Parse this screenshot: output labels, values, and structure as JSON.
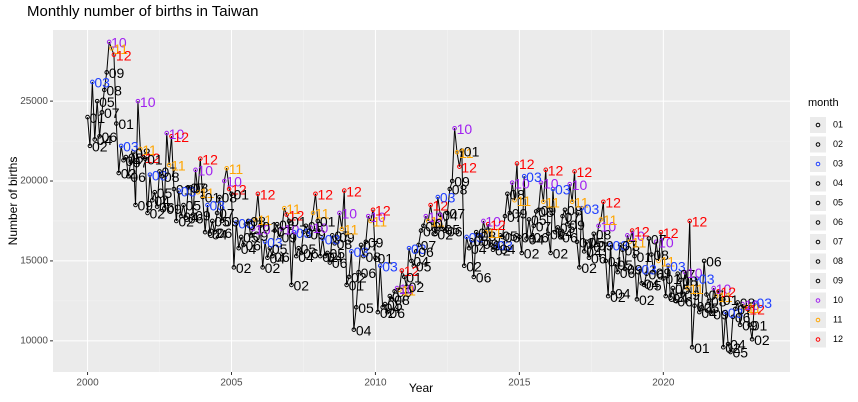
{
  "chart_data": {
    "type": "line",
    "title": "Monthly number of births in Taiwan",
    "x_label": "Year",
    "y_label": "Number of births",
    "legend_title": "month",
    "x": [
      2000,
      2001,
      2002,
      2003,
      2004,
      2005,
      2006,
      2007,
      2008,
      2009,
      2010,
      2011,
      2012,
      2013,
      2014,
      2015,
      2016,
      2017,
      2018,
      2019,
      2020,
      2021,
      2022,
      2023
    ],
    "xlim": [
      1998.8,
      2024.4
    ],
    "xticks": [
      2000,
      2005,
      2010,
      2015,
      2020
    ],
    "ylim": [
      8050,
      29450
    ],
    "yticks": [
      10000,
      15000,
      20000,
      25000
    ],
    "grid": true,
    "line_color": "#000000",
    "series": [
      {
        "name": "01",
        "color": "#000000",
        "values": [
          24000,
          23600,
          21400,
          19500,
          19000,
          19200,
          17200,
          17500,
          17500,
          13500,
          15200,
          14000,
          17400,
          21900,
          16000,
          16500,
          16700,
          16200,
          15000,
          15300,
          13900,
          9600,
          12600,
          11000
        ]
      },
      {
        "name": "02",
        "color": "#000000",
        "values": [
          22200,
          20500,
          18000,
          17500,
          16800,
          14600,
          14600,
          13500,
          15300,
          14000,
          11800,
          13400,
          16700,
          14700,
          15700,
          15500,
          15500,
          14600,
          12800,
          12600,
          12800,
          12200,
          9600,
          10100
        ]
      },
      {
        "name": "03",
        "color": "#1f3fff",
        "values": [
          26200,
          22200,
          20400,
          19400,
          18500,
          17400,
          16200,
          16800,
          16400,
          15600,
          14700,
          15800,
          19000,
          16500,
          16000,
          20300,
          19500,
          18300,
          16000,
          14500,
          14700,
          13900,
          11800,
          12400
        ]
      },
      {
        "name": "04",
        "color": "#000000",
        "values": [
          22600,
          21300,
          18800,
          17800,
          16700,
          15800,
          15200,
          15300,
          15300,
          10700,
          12100,
          15000,
          17900,
          15800,
          15800,
          16400,
          16800,
          15600,
          13000,
          13600,
          12700,
          11800,
          9800,
          null
        ]
      },
      {
        "name": "05",
        "color": "#000000",
        "values": [
          25000,
          21500,
          19300,
          18500,
          17500,
          16500,
          15800,
          15800,
          15500,
          12100,
          12300,
          14700,
          17000,
          16300,
          16600,
          17600,
          17100,
          16200,
          14800,
          13500,
          13300,
          12100,
          9300,
          null
        ]
      },
      {
        "name": "06",
        "color": "#000000",
        "values": [
          22800,
          20300,
          18400,
          17700,
          16800,
          16000,
          15300,
          15500,
          14900,
          14300,
          11800,
          15600,
          16900,
          14000,
          16500,
          16500,
          16500,
          15200,
          14300,
          14200,
          12500,
          15000,
          11500,
          null
        ]
      },
      {
        "name": "07",
        "color": "#000000",
        "values": [
          24300,
          21200,
          20600,
          19600,
          18000,
          17300,
          16900,
          16800,
          16600,
          16000,
          12800,
          16000,
          18000,
          16800,
          17800,
          17200,
          17800,
          15900,
          16000,
          16400,
          14200,
          12900,
          12000,
          null
        ]
      },
      {
        "name": "08",
        "color": "#000000",
        "values": [
          25700,
          21800,
          20300,
          19600,
          19000,
          17500,
          17300,
          17200,
          16100,
          15300,
          12600,
          16900,
          19500,
          16600,
          19200,
          18100,
          18200,
          16700,
          15700,
          15400,
          13800,
          12500,
          12400,
          null
        ]
      },
      {
        "name": "09",
        "color": "#000000",
        "values": [
          26800,
          18500,
          18300,
          17900,
          17500,
          16600,
          16500,
          16700,
          16500,
          16200,
          13100,
          17200,
          20000,
          16100,
          18000,
          18200,
          17300,
          16000,
          14500,
          14300,
          12900,
          11700,
          11000,
          null
        ]
      },
      {
        "name": "10",
        "color": "#a020f0",
        "values": [
          28700,
          25000,
          23000,
          20700,
          20000,
          17000,
          17000,
          17100,
          18000,
          17800,
          13300,
          17800,
          23300,
          17500,
          19900,
          19900,
          19800,
          17200,
          16600,
          16200,
          14300,
          13300,
          12300,
          null
        ]
      },
      {
        "name": "11",
        "color": "#ffa500",
        "values": [
          28300,
          22000,
          21000,
          19300,
          20800,
          17600,
          18300,
          18000,
          17000,
          17500,
          13200,
          17500,
          21800,
          16800,
          18800,
          18700,
          18700,
          17600,
          16200,
          15000,
          13300,
          12800,
          12100,
          null
        ]
      },
      {
        "name": "12",
        "color": "#ff0000",
        "values": [
          27900,
          21500,
          22800,
          21400,
          19500,
          19200,
          17900,
          19200,
          19400,
          18200,
          14400,
          18500,
          20900,
          17300,
          21100,
          20700,
          20600,
          18700,
          16900,
          16800,
          17500,
          13100,
          12000,
          null
        ]
      }
    ]
  }
}
